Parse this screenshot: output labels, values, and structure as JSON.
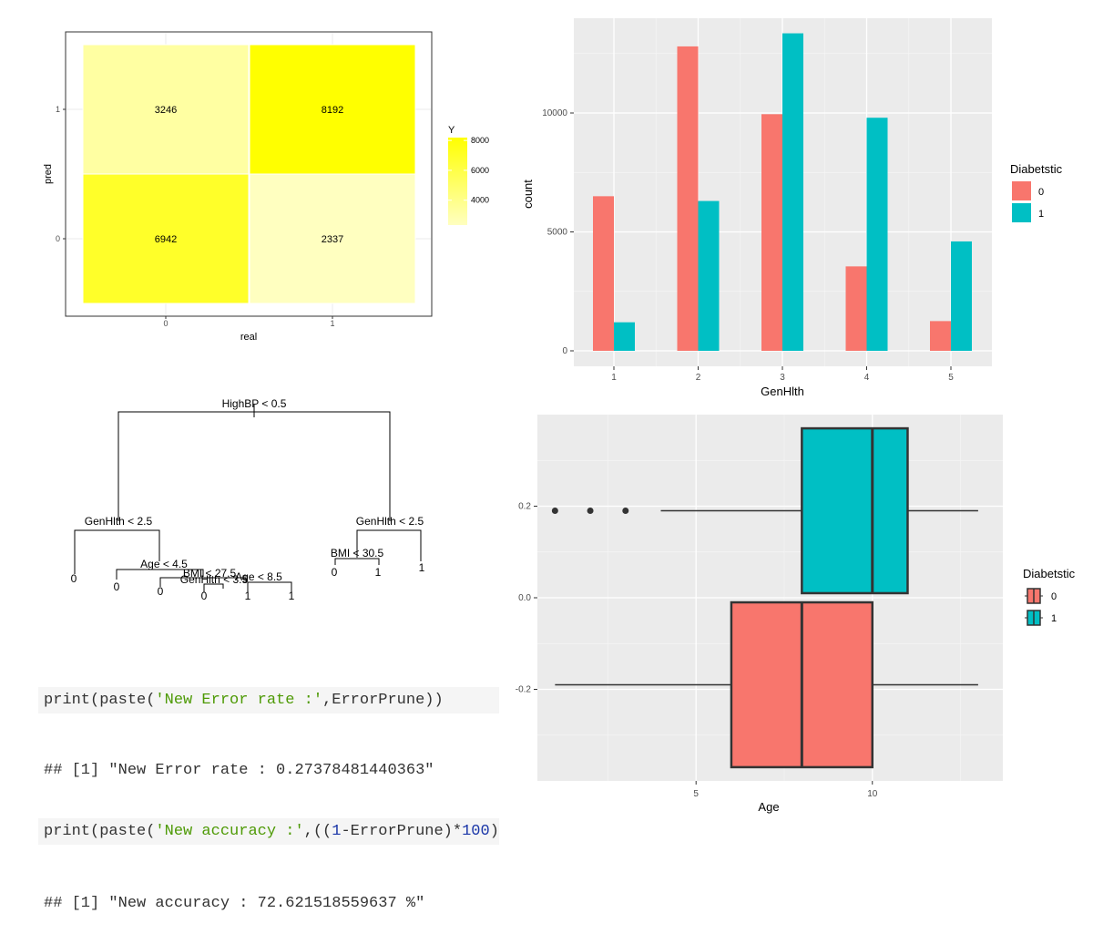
{
  "heatmap": {
    "xlabel": "real",
    "ylabel": "pred",
    "legend_title": "Y",
    "legend_ticks": [
      "8000",
      "6000",
      "4000"
    ],
    "colors": {
      "low": "#ffffc0",
      "high": "#ffff00"
    }
  },
  "bar": {
    "xlabel": "GenHlth",
    "ylabel": "count",
    "legend_title": "Diabetstic",
    "legend_labels": [
      "0",
      "1"
    ],
    "colors": [
      "#f8766d",
      "#00bfc4"
    ]
  },
  "tree": {
    "nodes": {
      "root": "HighBP < 0.5",
      "left": "GenHlth < 2.5",
      "right": "GenHlth < 2.5",
      "age45": "Age < 4.5",
      "bmi275": "BMI < 27.5",
      "genhlth35": "GenHlth < 3.5",
      "age85": "Age < 8.5",
      "bmi305": "BMI < 30.5"
    },
    "leaves": [
      "0",
      "0",
      "0",
      "0",
      "1",
      "1",
      "0",
      "1",
      "1"
    ]
  },
  "box": {
    "xlabel": "Age",
    "legend_title": "Diabetstic",
    "legend_labels": [
      "0",
      "1"
    ],
    "y_ticks": [
      "0.2",
      "0.0",
      "-0.2"
    ],
    "x_ticks": [
      "5",
      "10"
    ],
    "colors": [
      "#f8766d",
      "#00bfc4"
    ]
  },
  "code": {
    "line1_pre": "print(paste(",
    "line1_str": "'New Error rate :'",
    "line1_post": ",ErrorPrune))",
    "out1": "## [1] \"New Error rate : 0.27378481440363\"",
    "line2_pre": "print(paste(",
    "line2_str": "'New accuracy :'",
    "line2_mid": ",((",
    "line2_num1": "1",
    "line2_mid2": "-ErrorPrune)*",
    "line2_num2": "100",
    "line2_post": "),",
    "out2": "## [1] \"New accuracy : 72.621518559637 %\""
  },
  "chart_data": [
    {
      "type": "heatmap",
      "x": [
        "0",
        "1"
      ],
      "y": [
        "0",
        "1"
      ],
      "xlabel": "real",
      "ylabel": "pred",
      "cells": [
        {
          "x": "0",
          "y": "1",
          "value": 3246
        },
        {
          "x": "1",
          "y": "1",
          "value": 8192
        },
        {
          "x": "0",
          "y": "0",
          "value": 6942
        },
        {
          "x": "1",
          "y": "0",
          "value": 2337
        }
      ],
      "legend_title": "Y",
      "color_range": [
        2337,
        8192
      ]
    },
    {
      "type": "bar",
      "categories": [
        "1",
        "2",
        "3",
        "4",
        "5"
      ],
      "series": [
        {
          "name": "0",
          "values": [
            6500,
            12800,
            9950,
            3550,
            1250
          ]
        },
        {
          "name": "1",
          "values": [
            1200,
            6300,
            13350,
            9800,
            4600
          ]
        }
      ],
      "xlabel": "GenHlth",
      "ylabel": "count",
      "ylim": [
        0,
        14000
      ],
      "y_ticks": [
        0,
        5000,
        10000
      ],
      "legend_title": "Diabetstic",
      "legend_position": "right"
    },
    {
      "type": "box",
      "orientation": "horizontal",
      "xlabel": "Age",
      "series": [
        {
          "name": "0",
          "y": -0.19,
          "min": 1,
          "q1": 6,
          "median": 8,
          "q3": 10,
          "max": 13
        },
        {
          "name": "1",
          "y": 0.19,
          "min": 4,
          "q1": 8,
          "median": 10,
          "q3": 11,
          "max": 13,
          "outliers": [
            1,
            2,
            3
          ]
        }
      ],
      "xlim": [
        0.5,
        13.7
      ],
      "ylim": [
        -0.4,
        0.4
      ],
      "x_ticks": [
        5,
        10
      ],
      "y_ticks": [
        -0.2,
        0.0,
        0.2
      ],
      "legend_title": "Diabetstic",
      "legend_position": "right"
    }
  ]
}
